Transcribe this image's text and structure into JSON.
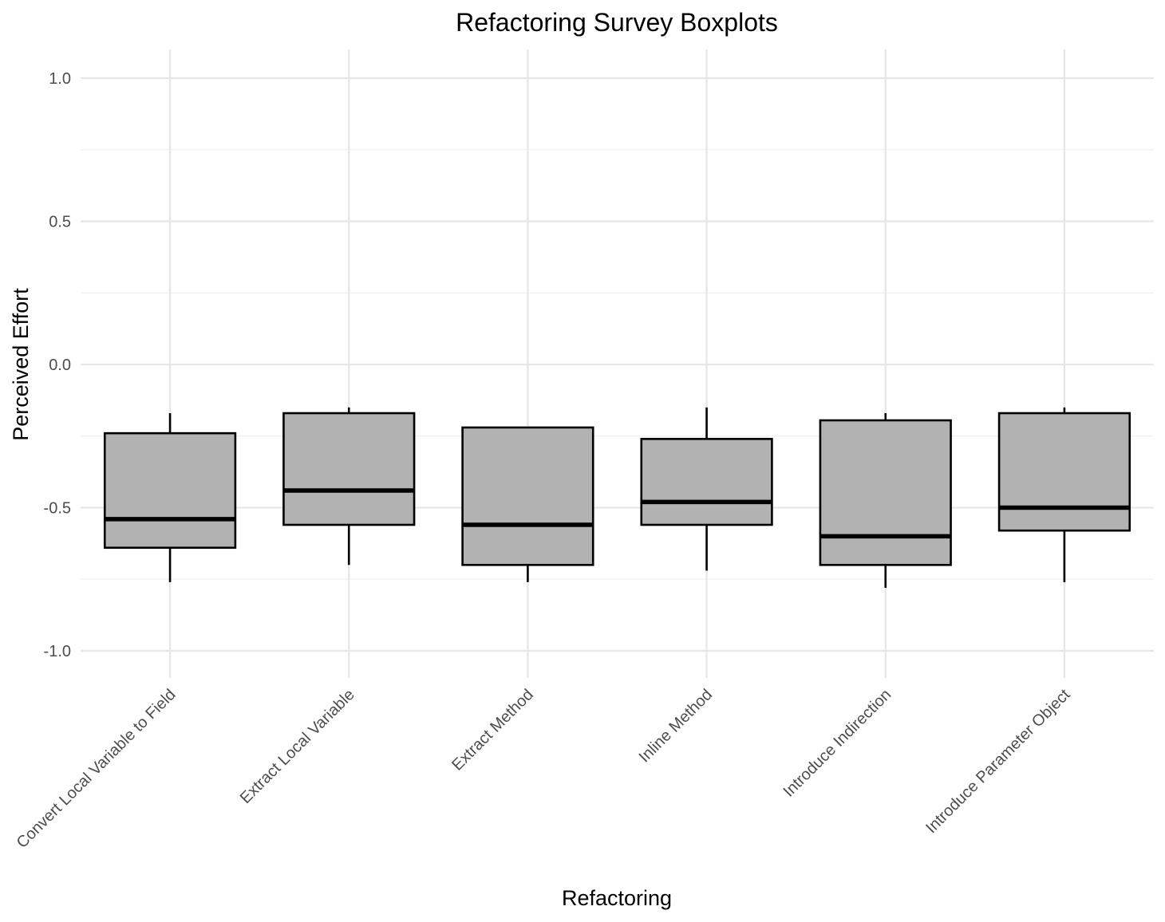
{
  "chart_data": {
    "type": "boxplot",
    "title": "Refactoring Survey Boxplots",
    "xlabel": "Refactoring",
    "ylabel": "Perceived Effort",
    "ylim": [
      -1.1,
      1.1
    ],
    "y_ticks": [
      -1.0,
      -0.5,
      0.0,
      0.5,
      1.0
    ],
    "y_tick_labels": [
      "-1.0",
      "-0.5",
      "0.0",
      "0.5",
      "1.0"
    ],
    "grid": true,
    "box_fill": "#b2b2b2",
    "categories": [
      "Convert Local Variable to Field",
      "Extract Local Variable",
      "Extract Method",
      "Inline Method",
      "Introduce Indirection",
      "Introduce Parameter Object"
    ],
    "boxes": [
      {
        "min": -0.76,
        "q1": -0.64,
        "median": -0.54,
        "q3": -0.24,
        "max": -0.17
      },
      {
        "min": -0.7,
        "q1": -0.56,
        "median": -0.44,
        "q3": -0.17,
        "max": -0.15
      },
      {
        "min": -0.76,
        "q1": -0.7,
        "median": -0.56,
        "q3": -0.22,
        "max": -0.22
      },
      {
        "min": -0.72,
        "q1": -0.56,
        "median": -0.48,
        "q3": -0.26,
        "max": -0.15
      },
      {
        "min": -0.78,
        "q1": -0.7,
        "median": -0.6,
        "q3": -0.195,
        "max": -0.17
      },
      {
        "min": -0.76,
        "q1": -0.58,
        "median": -0.5,
        "q3": -0.17,
        "max": -0.15
      }
    ]
  }
}
